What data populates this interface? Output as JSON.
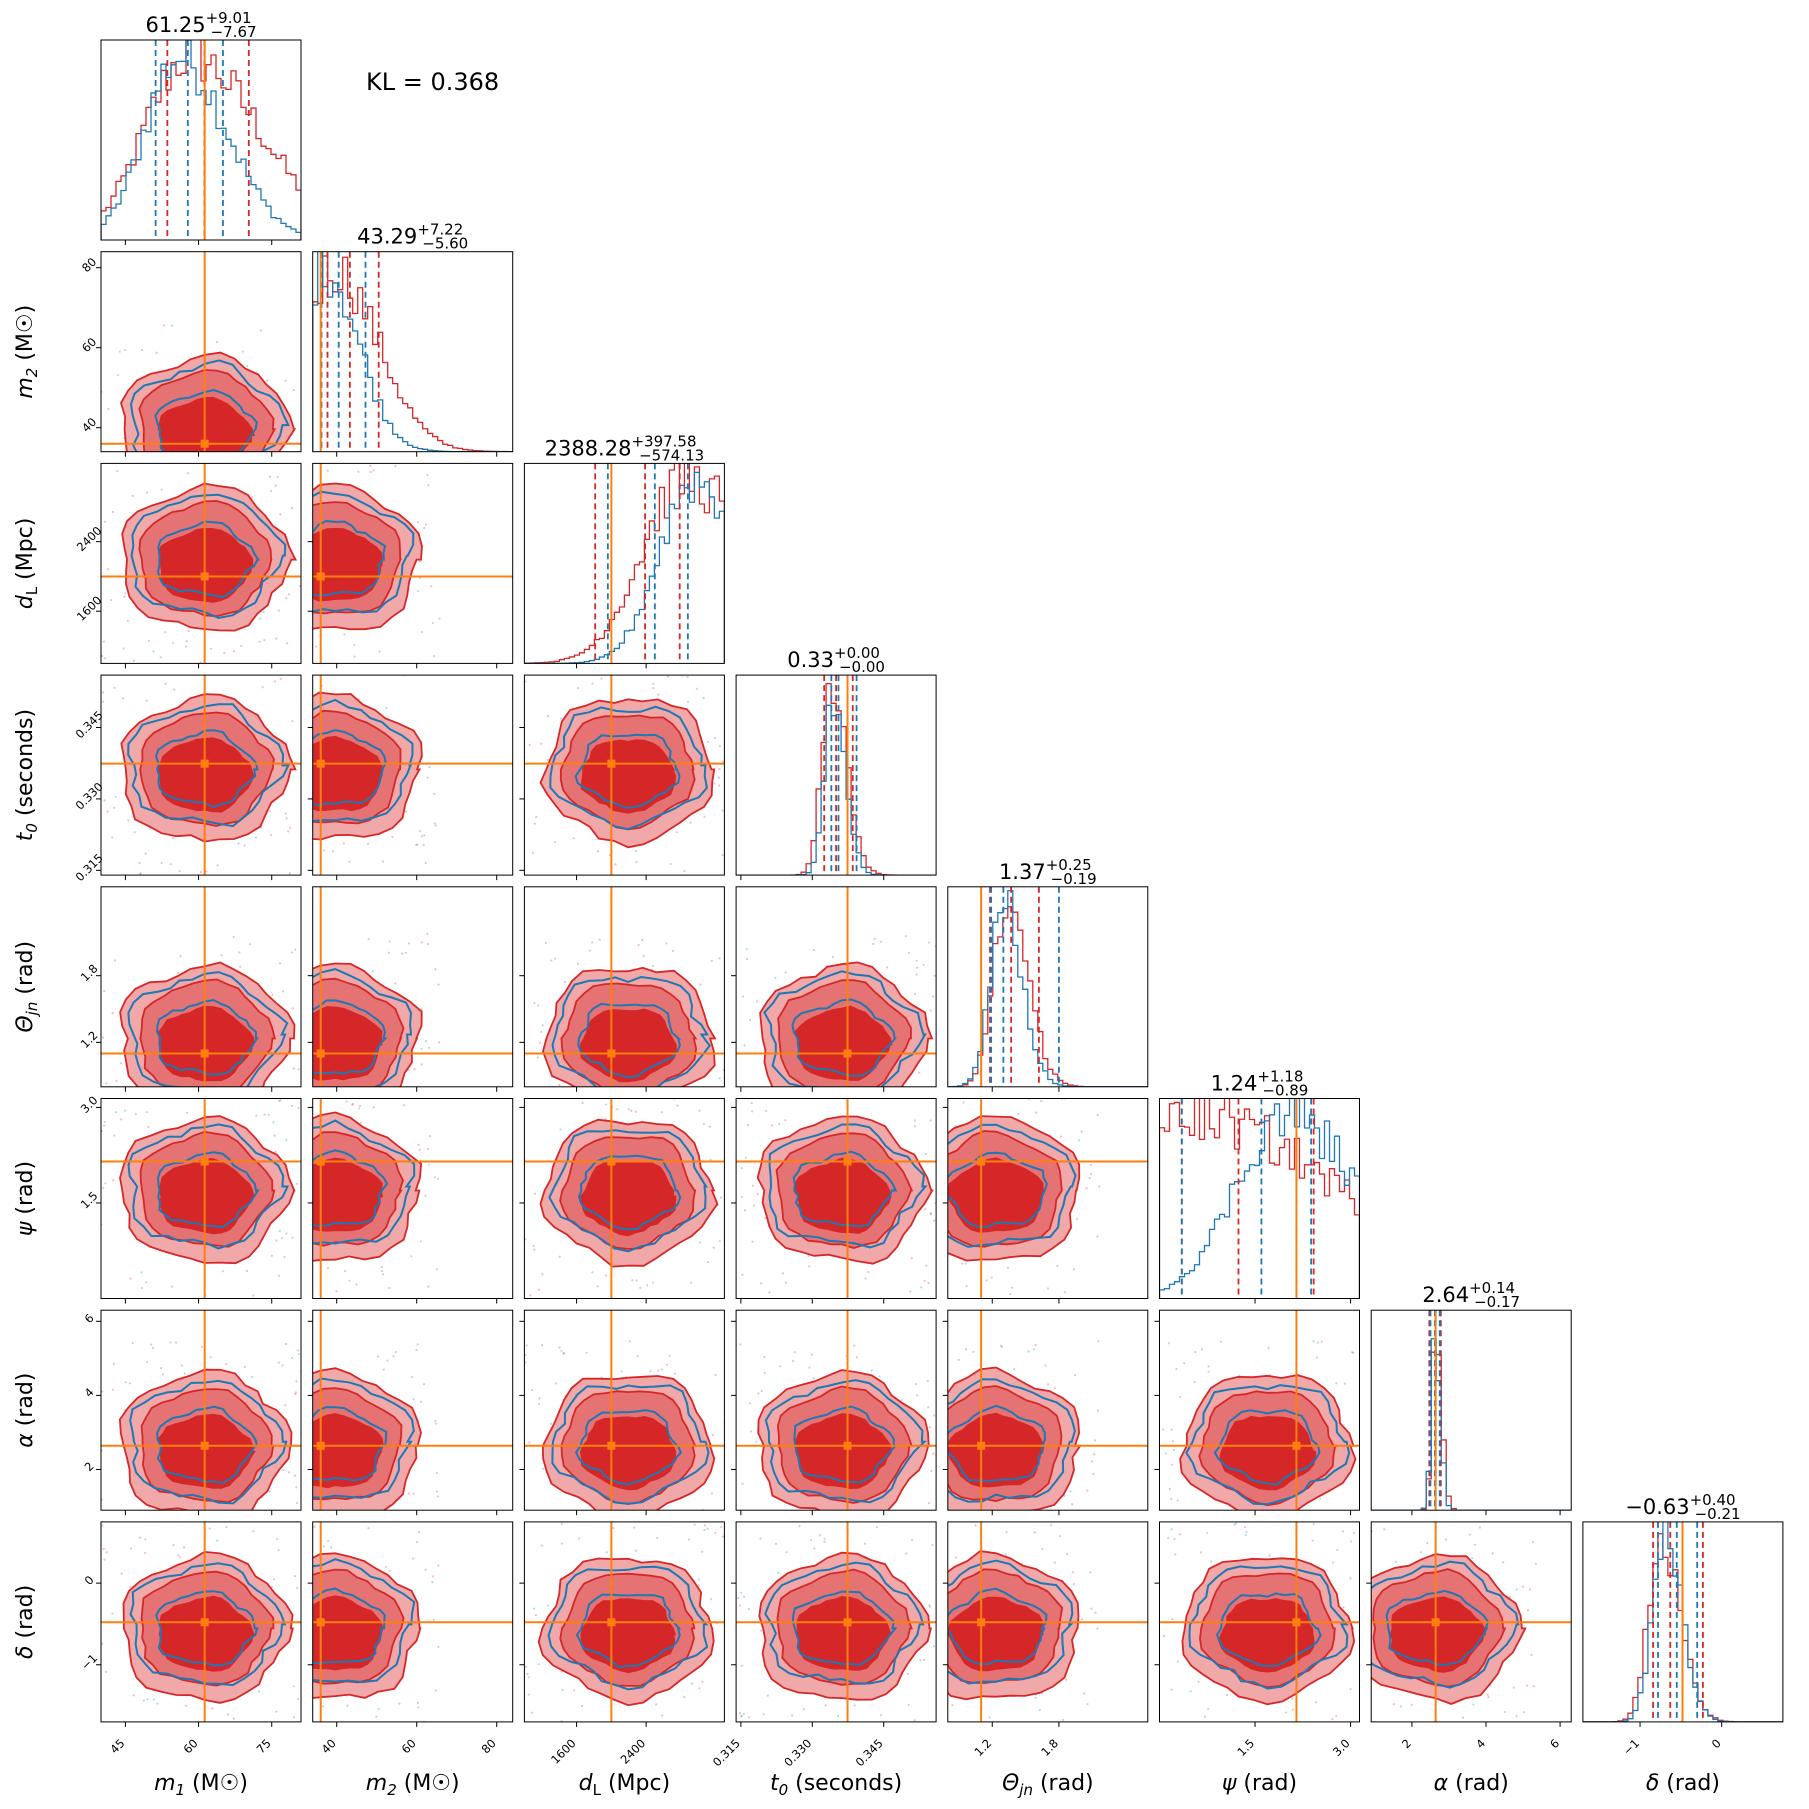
{
  "annotation": {
    "kl_text": "KL = 0.368"
  },
  "colors": {
    "posterior_a": "#d62728",
    "posterior_b": "#1f77b4",
    "truth": "#ff7f0e"
  },
  "chart_data": {
    "type": "corner",
    "series": [
      {
        "name": "",
        "color": "#d62728"
      },
      {
        "name": "",
        "color": "#1f77b4"
      }
    ],
    "parameters": [
      {
        "key": "m1",
        "xlabel_main": "m",
        "sub": "1",
        "unit": "(M☉)",
        "range": [
          40,
          81
        ],
        "ticks": [
          {
            "v": 45,
            "t": "45"
          },
          {
            "v": 60,
            "t": "60"
          },
          {
            "v": 75,
            "t": "75"
          }
        ],
        "truth": 61.25,
        "median": "61.25",
        "plus": "+9.01",
        "minus": "−7.67",
        "redq": [
          53.6,
          61.2,
          70.3
        ],
        "blueq": [
          51.2,
          57.8,
          65.0
        ],
        "rmode": 58,
        "rwidth": 9,
        "bmode": 56,
        "bwidth": 7
      },
      {
        "key": "m2",
        "xlabel_main": "m",
        "sub": "2",
        "unit": "(M☉)",
        "range": [
          34,
          84
        ],
        "ticks": [
          {
            "v": 40,
            "t": "40"
          },
          {
            "v": 60,
            "t": "60"
          },
          {
            "v": 80,
            "t": "80"
          }
        ],
        "truth": 36.0,
        "median": "43.29",
        "plus": "+7.22",
        "minus": "−5.60",
        "redq": [
          37.7,
          43.3,
          50.5
        ],
        "blueq": [
          36.2,
          40.5,
          47.2
        ],
        "rmode": 39,
        "rwidth": 7,
        "bmode": 37,
        "bwidth": 6
      },
      {
        "key": "dL",
        "xlabel_main": "d",
        "sub": "L",
        "unit": "(Mpc)",
        "range": [
          1000,
          3300
        ],
        "ticks": [
          {
            "v": 1600,
            "t": "1600"
          },
          {
            "v": 2400,
            "t": "2400"
          }
        ],
        "truth": 2000,
        "median": "2388.28",
        "plus": "+397.58",
        "minus": "−574.13",
        "redq": [
          1814,
          2388,
          2786
        ],
        "blueq": [
          1960,
          2500,
          2880
        ],
        "rmode": 2850,
        "rwidth": 500,
        "bmode": 2950,
        "bwidth": 400
      },
      {
        "key": "t0",
        "xlabel_main": "t",
        "sub": "0",
        "unit": "(seconds)",
        "range": [
          0.314,
          0.356
        ],
        "ticks": [
          {
            "v": 0.315,
            "t": "0.315"
          },
          {
            "v": 0.33,
            "t": "0.330"
          },
          {
            "v": 0.345,
            "t": "0.345"
          }
        ],
        "truth": 0.3374,
        "median": "0.33",
        "plus": "+0.00",
        "minus": "−0.00",
        "redq": [
          0.3325,
          0.335,
          0.3385
        ],
        "blueq": [
          0.334,
          0.3355,
          0.3393
        ],
        "rmode": 0.334,
        "rwidth": 0.002,
        "bmode": 0.3345,
        "bwidth": 0.0018
      },
      {
        "key": "theta",
        "xlabel_main": "Θ",
        "sub": "jn",
        "unit": "(rad)",
        "range": [
          0.8,
          2.6
        ],
        "ticks": [
          {
            "v": 1.2,
            "t": "1.2"
          },
          {
            "v": 1.8,
            "t": "1.8"
          }
        ],
        "truth": 1.1,
        "median": "1.37",
        "plus": "+0.25",
        "minus": "−0.19",
        "redq": [
          1.18,
          1.37,
          1.62
        ],
        "blueq": [
          1.19,
          1.3,
          1.8
        ],
        "rmode": 1.32,
        "rwidth": 0.12,
        "bmode": 1.3,
        "bwidth": 0.12
      },
      {
        "key": "psi",
        "xlabel_main": "ψ",
        "sub": "",
        "unit": "(rad)",
        "range": [
          0.0,
          3.14
        ],
        "ticks": [
          {
            "v": 1.5,
            "t": "1.5"
          },
          {
            "v": 3.0,
            "t": "3.0"
          }
        ],
        "truth": 2.15,
        "median": "1.24",
        "plus": "+1.18",
        "minus": "−0.89",
        "redq": [
          0.35,
          1.24,
          2.42
        ],
        "blueq": [
          0.35,
          1.6,
          2.38
        ],
        "rmode": 0.4,
        "rwidth": 1.5,
        "bmode": 2.0,
        "bwidth": 0.8
      },
      {
        "key": "alpha",
        "xlabel_main": "α",
        "sub": "",
        "unit": "(rad)",
        "range": [
          0.9,
          6.3
        ],
        "ticks": [
          {
            "v": 2,
            "t": "2"
          },
          {
            "v": 4,
            "t": "4"
          },
          {
            "v": 6,
            "t": "6"
          }
        ],
        "truth": 2.64,
        "median": "2.64",
        "plus": "+0.14",
        "minus": "−0.17",
        "redq": [
          2.47,
          2.64,
          2.78
        ],
        "blueq": [
          2.5,
          2.62,
          2.75
        ],
        "rmode": 2.64,
        "rwidth": 0.1,
        "bmode": 2.62,
        "bwidth": 0.1
      },
      {
        "key": "delta",
        "xlabel_main": "δ",
        "sub": "",
        "unit": "(rad)",
        "range": [
          -1.7,
          0.75
        ],
        "ticks": [
          {
            "v": -1,
            "t": "−1"
          },
          {
            "v": 0,
            "t": "0"
          }
        ],
        "truth": -0.48,
        "median": "−0.63",
        "plus": "+0.40",
        "minus": "−0.21",
        "redq": [
          -0.84,
          -0.63,
          -0.23
        ],
        "blueq": [
          -0.78,
          -0.55,
          -0.3
        ],
        "rmode": -0.75,
        "rwidth": 0.15,
        "bmode": -0.7,
        "bwidth": 0.15
      }
    ],
    "axis_ranges_note": "",
    "grid": false,
    "legend": "none"
  }
}
